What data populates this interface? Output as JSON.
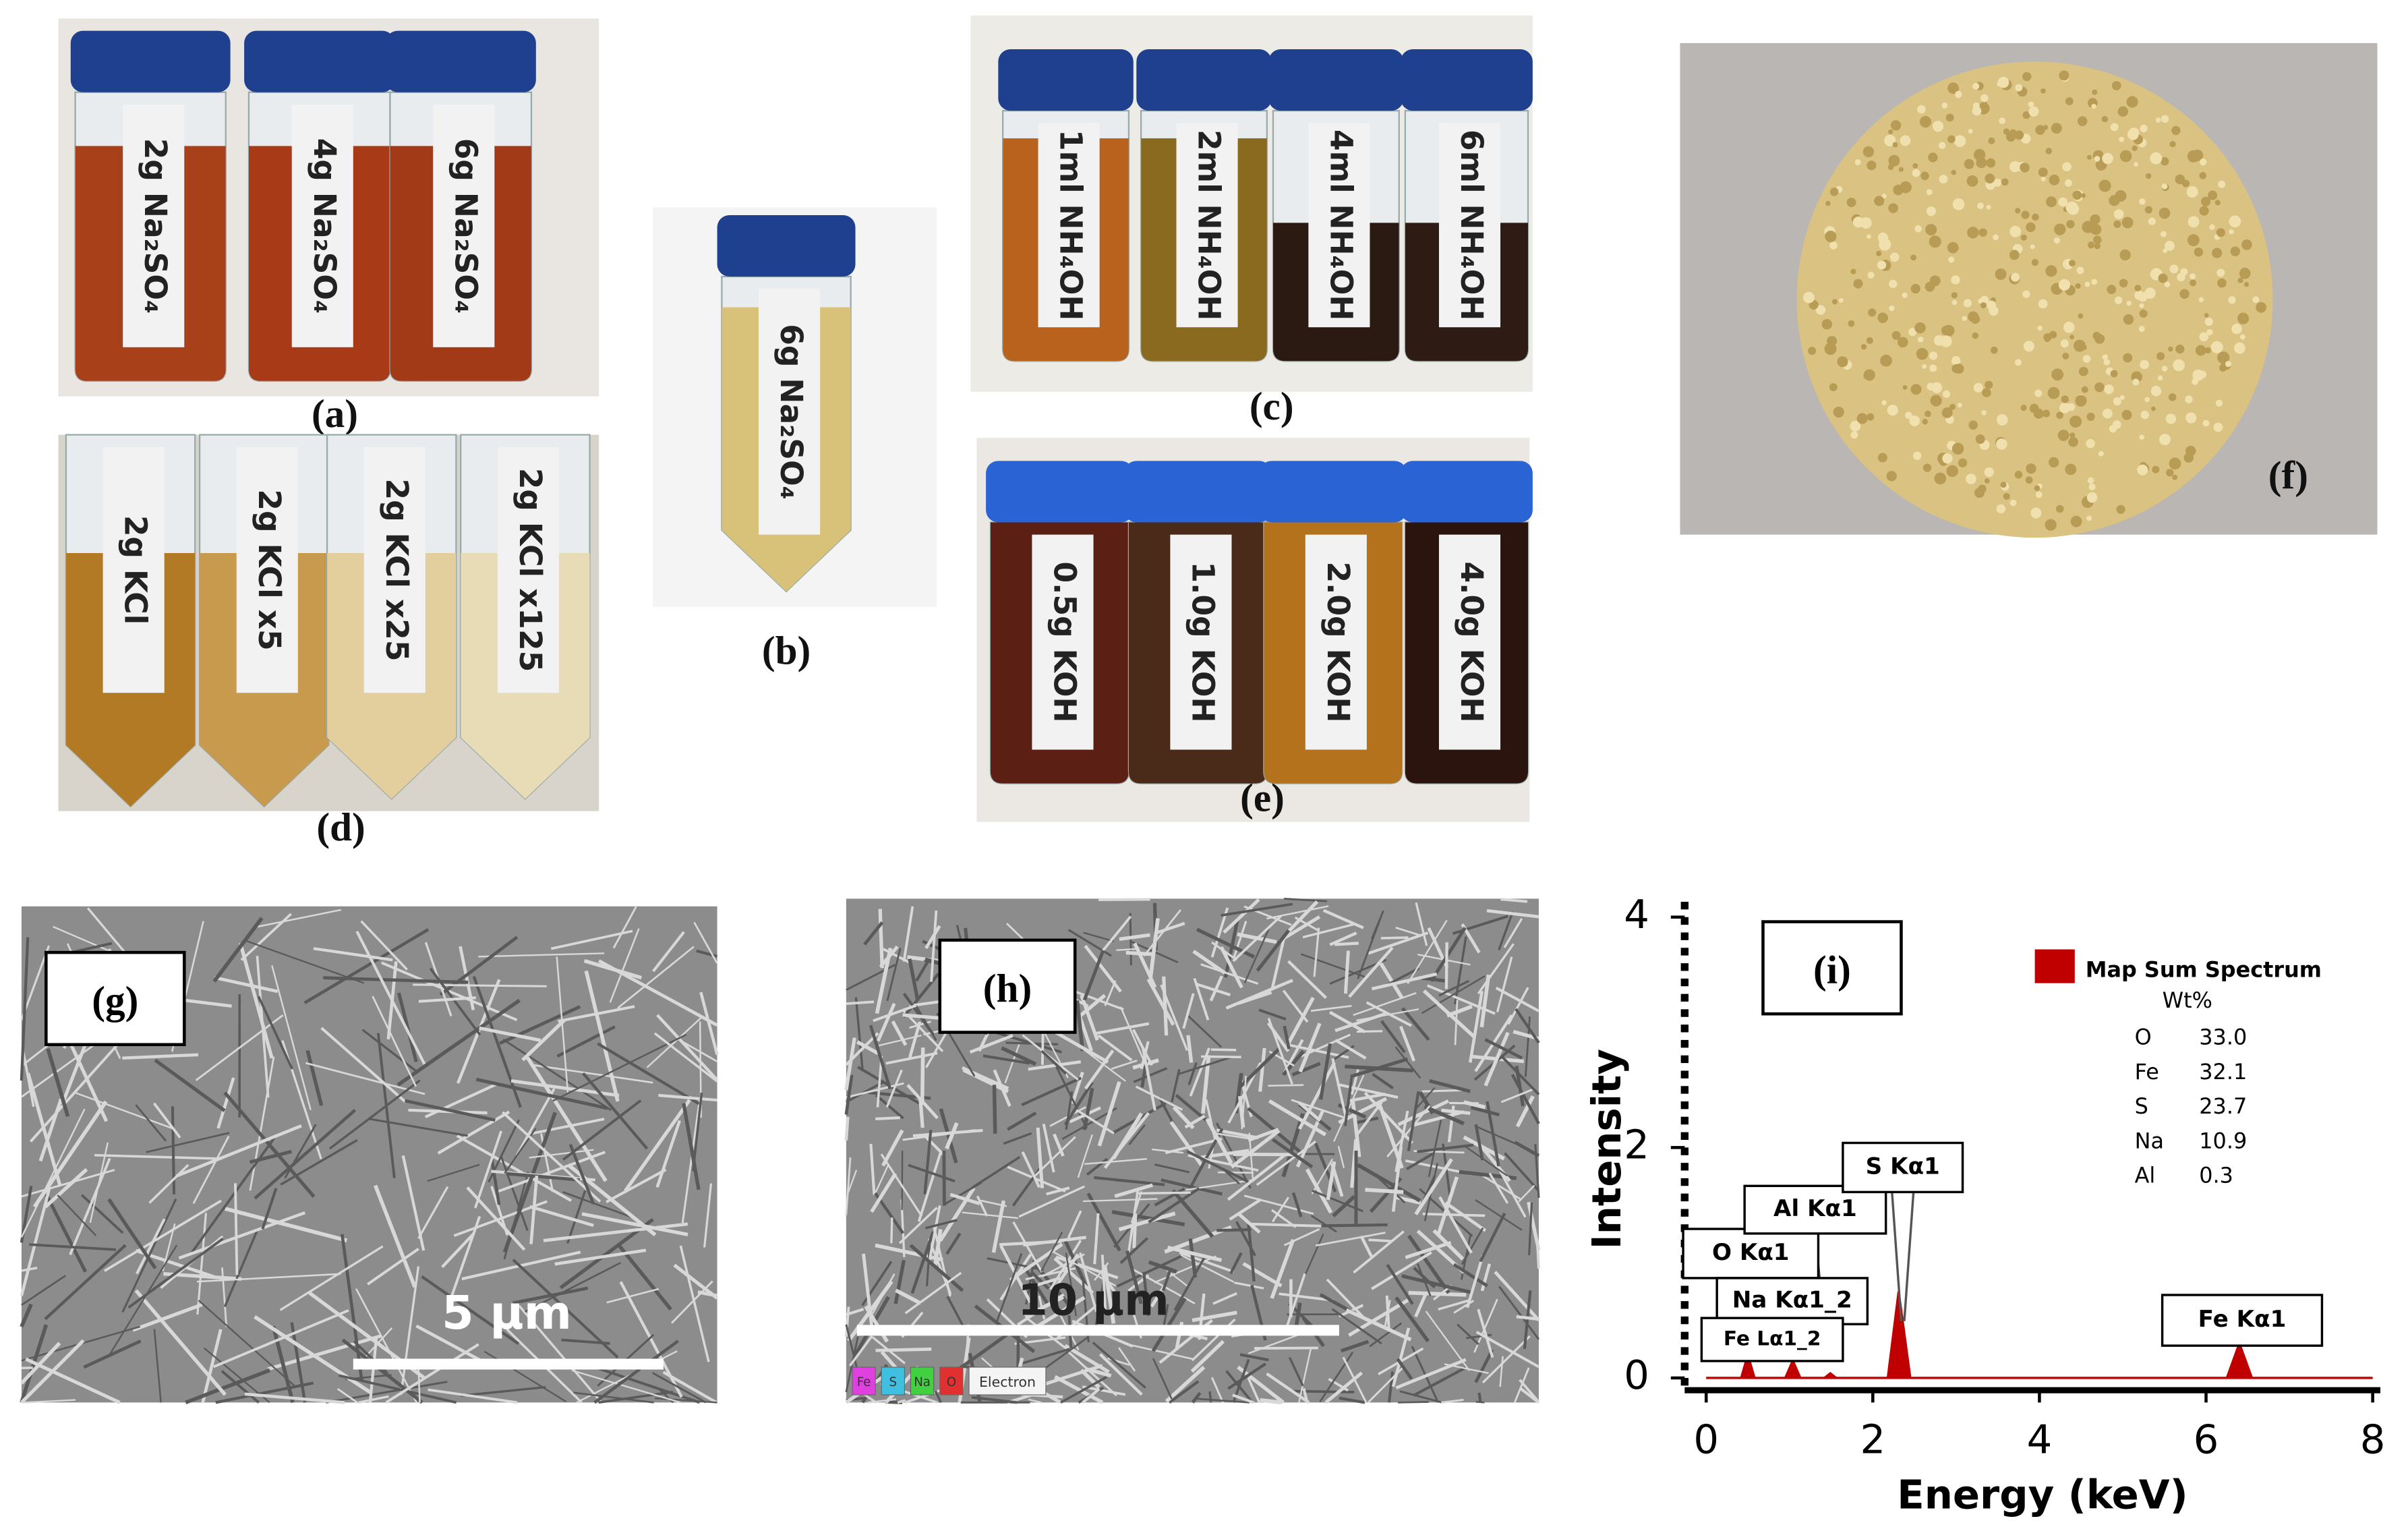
{
  "panels": [
    {
      "label": "(a)",
      "tubes": [
        "2g Na₂SO₄",
        "4g Na₂SO₄",
        "6g Na₂SO₄"
      ]
    },
    {
      "label": "(b)",
      "tubes": [
        "6g Na₂SO₄"
      ]
    },
    {
      "label": "(c)",
      "tubes": [
        "1ml NH₄OH",
        "2ml NH₄OH",
        "4ml NH₄OH",
        "6ml NH₄OH"
      ]
    },
    {
      "label": "(d)",
      "tubes": [
        "2g KCl",
        "2g KCl x5",
        "2g KCl x25",
        "2g KCl x125"
      ]
    },
    {
      "label": "(e)",
      "tubes": [
        "0.5g KOH",
        "1.0g KOH",
        "2.0g KOH",
        "4.0g KOH"
      ]
    },
    {
      "label": "(f)"
    },
    {
      "label": "(g)",
      "scale_bar": "5 µm"
    },
    {
      "label": "(h)",
      "scale_bar": "10 µm",
      "map_legend": [
        "Fe",
        "S",
        "Na",
        "O",
        "Electron"
      ]
    }
  ],
  "chart_data": {
    "type": "area",
    "panel_label": "(i)",
    "x": [
      0,
      0.42,
      0.5,
      0.58,
      0.95,
      1.04,
      1.13,
      1.42,
      1.49,
      1.56,
      2.18,
      2.31,
      2.45,
      6.25,
      6.4,
      6.55,
      8
    ],
    "series": [
      {
        "name": "Map Sum Spectrum",
        "color": "#c00000",
        "values": [
          0,
          0,
          0.2,
          0,
          0,
          0.15,
          0,
          0,
          0.04,
          0,
          0,
          0.75,
          0,
          0,
          0.3,
          0,
          0
        ]
      }
    ],
    "xlim": [
      0,
      8
    ],
    "ylim": [
      0,
      4
    ],
    "xticks": [
      0,
      2,
      4,
      6,
      8
    ],
    "yticks": [
      0,
      2,
      4
    ],
    "x_label": "Energy (keV)",
    "y_label": "Intensity",
    "peak_labels": [
      "O Kα1",
      "Na Kα1_2",
      "Fe Lα1_2",
      "Al Kα1",
      "S Kα1",
      "Fe Kα1"
    ],
    "composition": {
      "header": "Wt%",
      "rows": [
        [
          "O",
          "33.0"
        ],
        [
          "Fe",
          "32.1"
        ],
        [
          "S",
          "23.7"
        ],
        [
          "Na",
          "10.9"
        ],
        [
          "Al",
          "0.3"
        ]
      ]
    }
  }
}
